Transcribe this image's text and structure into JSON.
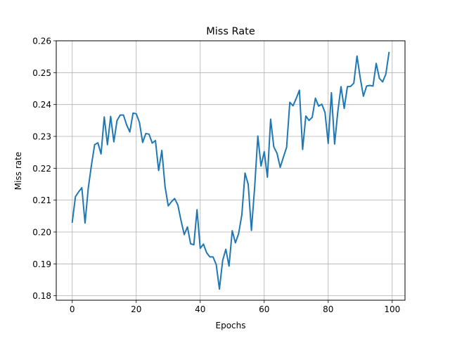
{
  "chart_data": {
    "type": "line",
    "title": "Miss Rate",
    "xlabel": "Epochs",
    "ylabel": "Miss rate",
    "xlim": [
      -5,
      104
    ],
    "ylim": [
      0.1786,
      0.26
    ],
    "xticks": [
      0,
      20,
      40,
      60,
      80,
      100
    ],
    "xtick_labels": [
      "0",
      "20",
      "40",
      "60",
      "80",
      "100"
    ],
    "yticks": [
      0.18,
      0.19,
      0.2,
      0.21,
      0.22,
      0.23,
      0.24,
      0.25,
      0.26
    ],
    "ytick_labels": [
      "0.18",
      "0.19",
      "0.20",
      "0.21",
      "0.22",
      "0.23",
      "0.24",
      "0.25",
      "0.26"
    ],
    "grid": true,
    "line_color": "#1f77b4",
    "series": [
      {
        "x": [
          0,
          1,
          2,
          3,
          4,
          5,
          6,
          7,
          8,
          9,
          10,
          11,
          12,
          13,
          14,
          15,
          16,
          17,
          18,
          19,
          20,
          21,
          22,
          23,
          24,
          25,
          26,
          27,
          28,
          29,
          30,
          31,
          32,
          33,
          34,
          35,
          36,
          37,
          38,
          39,
          40,
          41,
          42,
          43,
          44,
          45,
          46,
          47,
          48,
          49,
          50,
          51,
          52,
          53,
          54,
          55,
          56,
          57,
          58,
          59,
          60,
          61,
          62,
          63,
          64,
          65,
          66,
          67,
          68,
          69,
          70,
          71,
          72,
          73,
          74,
          75,
          76,
          77,
          78,
          79,
          80,
          81,
          82,
          83,
          84,
          85,
          86,
          87,
          88,
          89,
          90,
          91,
          92,
          93,
          94,
          95,
          96,
          97,
          98,
          99
        ],
        "values": [
          0.2031,
          0.2111,
          0.2126,
          0.2139,
          0.2028,
          0.2137,
          0.221,
          0.2274,
          0.228,
          0.2245,
          0.2361,
          0.2274,
          0.2363,
          0.2283,
          0.235,
          0.2367,
          0.2367,
          0.2336,
          0.2314,
          0.2373,
          0.2371,
          0.2344,
          0.2281,
          0.2309,
          0.2307,
          0.2279,
          0.2287,
          0.2193,
          0.2256,
          0.2143,
          0.2082,
          0.2095,
          0.2105,
          0.2085,
          0.2036,
          0.1992,
          0.2016,
          0.1963,
          0.196,
          0.207,
          0.1949,
          0.1962,
          0.1935,
          0.1922,
          0.1922,
          0.1898,
          0.1821,
          0.191,
          0.1946,
          0.1893,
          0.2004,
          0.1966,
          0.1995,
          0.2054,
          0.2185,
          0.2149,
          0.2005,
          0.2139,
          0.2301,
          0.2207,
          0.2252,
          0.2172,
          0.2354,
          0.2267,
          0.2247,
          0.2203,
          0.2235,
          0.2266,
          0.2407,
          0.2396,
          0.2419,
          0.2445,
          0.2259,
          0.2364,
          0.235,
          0.236,
          0.242,
          0.2395,
          0.2401,
          0.2375,
          0.2278,
          0.2437,
          0.2276,
          0.2378,
          0.2456,
          0.2388,
          0.2456,
          0.2457,
          0.2467,
          0.2552,
          0.2484,
          0.2426,
          0.2458,
          0.246,
          0.2458,
          0.2529,
          0.2482,
          0.2471,
          0.2495,
          0.2563
        ]
      }
    ]
  }
}
